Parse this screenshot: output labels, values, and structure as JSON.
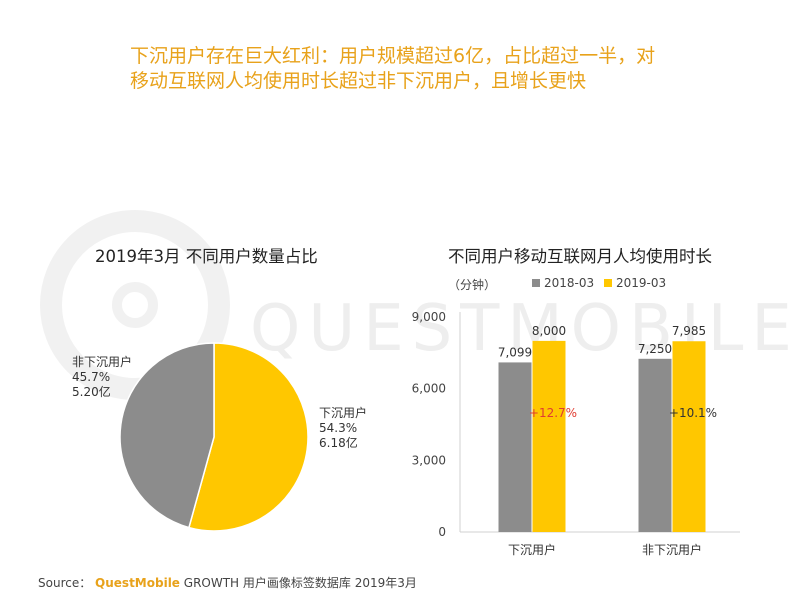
{
  "headline": {
    "line1": "下沉用户存在巨大红利：用户规模超过6亿，占比超过一半，对",
    "line2": "移动互联网人均使用时长超过非下沉用户，且增长更快"
  },
  "watermark": "QUESTMOBILE",
  "colors": {
    "gray": "#8C8C8C",
    "yellow": "#FFC700",
    "accent": "#E8A21B",
    "red": "#E03C31"
  },
  "chart_data": [
    {
      "type": "pie",
      "title": "2019年3月 不同用户数量占比",
      "slices": [
        {
          "label": "下沉用户",
          "pct": 54.3,
          "pct_text": "54.3%",
          "amount_text": "6.18亿",
          "color": "#FFC700"
        },
        {
          "label": "非下沉用户",
          "pct": 45.7,
          "pct_text": "45.7%",
          "amount_text": "5.20亿",
          "color": "#8C8C8C"
        }
      ]
    },
    {
      "type": "bar",
      "title": "不同用户移动互联网月人均使用时长",
      "unit": "（分钟）",
      "categories": [
        "下沉用户",
        "非下沉用户"
      ],
      "series": [
        {
          "name": "2018-03",
          "values": [
            7099,
            7250
          ],
          "labels": [
            "7,099",
            "7,250"
          ],
          "color": "#8C8C8C"
        },
        {
          "name": "2019-03",
          "values": [
            8000,
            7985
          ],
          "labels": [
            "8,000",
            "7,985"
          ],
          "color": "#FFC700"
        }
      ],
      "growth": [
        {
          "text": "+12.7%",
          "color": "#E03C31"
        },
        {
          "text": "+10.1%",
          "color": "#333333"
        }
      ],
      "ylim": [
        0,
        9000
      ],
      "yticks": [
        0,
        3000,
        6000,
        9000
      ],
      "ytick_labels": [
        "0",
        "3,000",
        "6,000",
        "9,000"
      ]
    }
  ],
  "source": {
    "prefix": "Source：",
    "brand": "QuestMobile",
    "suffix": " GROWTH 用户画像标签数据库 2019年3月"
  }
}
